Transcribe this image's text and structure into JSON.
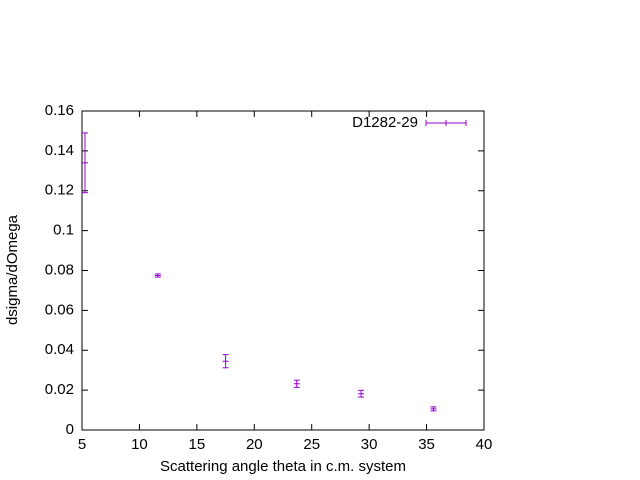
{
  "chart_data": {
    "type": "errorbar",
    "xlabel": "Scattering angle theta in c.m. system",
    "ylabel": "dsigma/dOmega",
    "xlim": [
      5,
      40
    ],
    "xticks": [
      5,
      10,
      15,
      20,
      25,
      30,
      35,
      40
    ],
    "ylim": [
      0,
      0.16
    ],
    "yticks": [
      0,
      0.02,
      0.04,
      0.06,
      0.08,
      0.1,
      0.12,
      0.14,
      0.16
    ],
    "legend": "top-right",
    "series": [
      {
        "name": "D1282-29",
        "color": "#9400d3",
        "x": [
          5.26,
          11.6,
          17.5,
          23.7,
          29.3,
          35.6
        ],
        "values": [
          0.134,
          0.0775,
          0.0345,
          0.0232,
          0.0182,
          0.0106
        ],
        "errors": [
          0.015,
          0.0008,
          0.0033,
          0.0018,
          0.0017,
          0.001
        ]
      }
    ]
  }
}
